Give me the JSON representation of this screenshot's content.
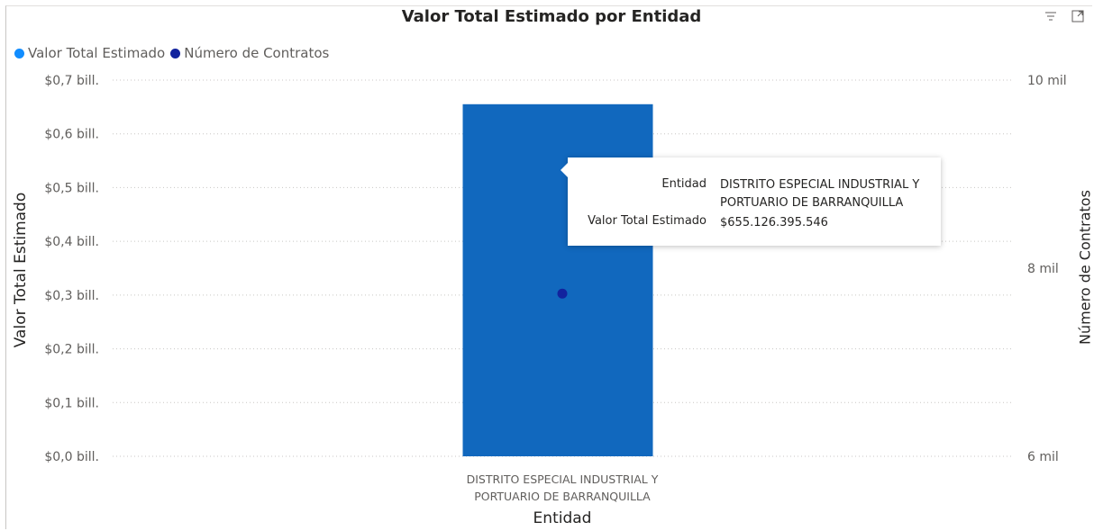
{
  "chart_data": {
    "type": "bar",
    "title": "Valor Total Estimado por Entidad",
    "xlabel": "Entidad",
    "ylabel": "Valor Total Estimado",
    "y2label": "Número de Contratos",
    "categories": [
      "DISTRITO ESPECIAL INDUSTRIAL Y PORTUARIO DE BARRANQUILLA"
    ],
    "category_lines": [
      [
        "DISTRITO ESPECIAL INDUSTRIAL Y",
        "PORTUARIO DE BARRANQUILLA"
      ]
    ],
    "series": [
      {
        "name": "Valor Total Estimado",
        "type": "bar",
        "axis": "left",
        "values": [
          655126395546
        ],
        "color": "#1168be"
      },
      {
        "name": "Número de Contratos",
        "type": "scatter",
        "axis": "right",
        "values": [
          7730
        ],
        "color": "#12239e"
      }
    ],
    "ylim": [
      0,
      700000000000
    ],
    "yticks": [
      0,
      100000000000,
      200000000000,
      300000000000,
      400000000000,
      500000000000,
      600000000000,
      700000000000
    ],
    "ytick_labels": [
      "$0,0 bill.",
      "$0,1 bill.",
      "$0,2 bill.",
      "$0,3 bill.",
      "$0,4 bill.",
      "$0,5 bill.",
      "$0,6 bill.",
      "$0,7 bill."
    ],
    "y2lim": [
      6000,
      10000
    ],
    "y2ticks": [
      6000,
      8000,
      10000
    ],
    "y2tick_labels": [
      "6 mil",
      "8 mil",
      "10 mil"
    ],
    "grid": true,
    "legend": "top-left"
  },
  "legend": [
    {
      "label": "Valor Total Estimado",
      "color": "#118dff"
    },
    {
      "label": "Número de Contratos",
      "color": "#12239e"
    }
  ],
  "tooltip": {
    "entidad_key": "Entidad",
    "entidad_line1": "DISTRITO ESPECIAL INDUSTRIAL Y",
    "entidad_line2": "PORTUARIO DE BARRANQUILLA",
    "valor_key": "Valor Total Estimado",
    "valor_value": "$655.126.395.546"
  },
  "icons": {
    "filter": "filter-icon",
    "focus": "focus-mode-icon"
  }
}
